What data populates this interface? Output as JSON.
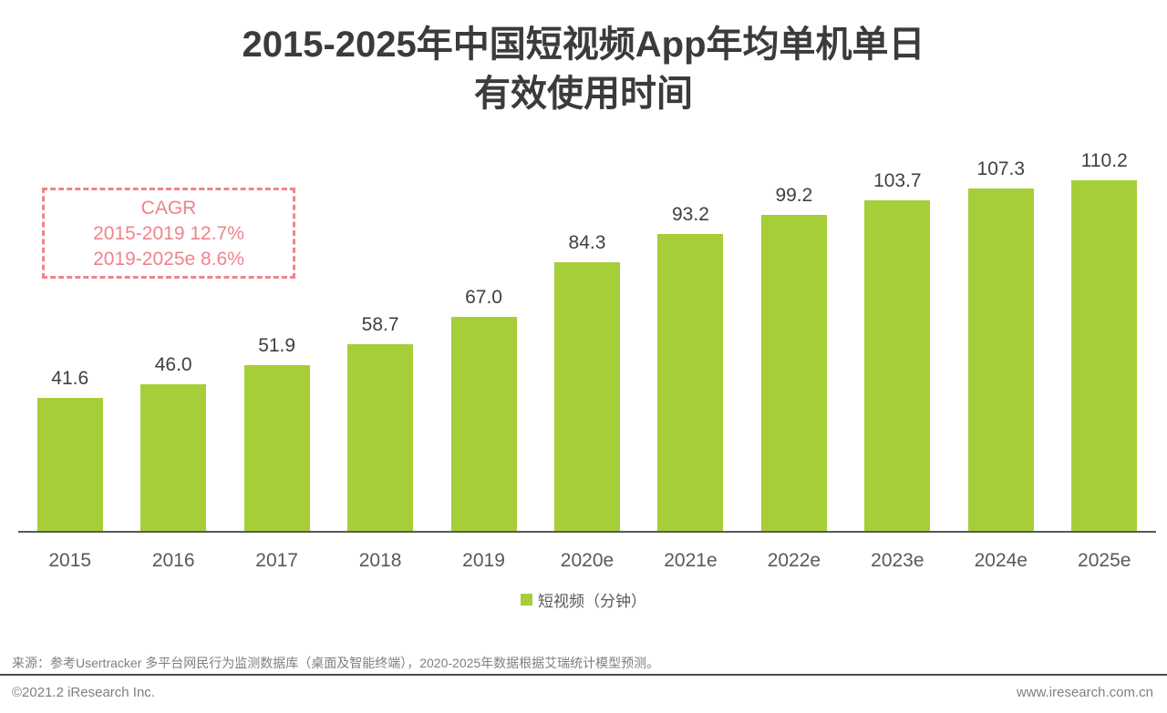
{
  "header": {
    "title_line1": "2015-2025年中国短视频App年均单机单日",
    "title_line2": "有效使用时间"
  },
  "cagr": {
    "title": "CAGR",
    "line1": "2015-2019 12.7%",
    "line2": "2019-2025e 8.6%"
  },
  "legend": {
    "label": "短视频（分钟）"
  },
  "footer": {
    "source": "来源：参考Usertracker 多平台网民行为监测数据库（桌面及智能终端），2020-2025年数据根据艾瑞统计模型预测。",
    "copyright": "©2021.2 iResearch Inc.",
    "website": "www.iresearch.com.cn"
  },
  "colors": {
    "bar": "#a6ce39",
    "accent_pink": "#ef838d"
  },
  "chart_data": {
    "type": "bar",
    "title": "2015-2025年中国短视频App年均单机单日有效使用时间",
    "categories": [
      "2015",
      "2016",
      "2017",
      "2018",
      "2019",
      "2020e",
      "2021e",
      "2022e",
      "2023e",
      "2024e",
      "2025e"
    ],
    "values": [
      41.6,
      46.0,
      51.9,
      58.7,
      67.0,
      84.3,
      93.2,
      99.2,
      103.7,
      107.3,
      110.2
    ],
    "series_name": "短视频（分钟）",
    "xlabel": "",
    "ylabel": "分钟",
    "ylim": [
      0,
      120
    ],
    "grid": false,
    "legend_position": "bottom",
    "value_labels": true,
    "value_label_decimals": 1,
    "annotations": [
      "CAGR",
      "2015-2019 12.7%",
      "2019-2025e 8.6%"
    ]
  }
}
